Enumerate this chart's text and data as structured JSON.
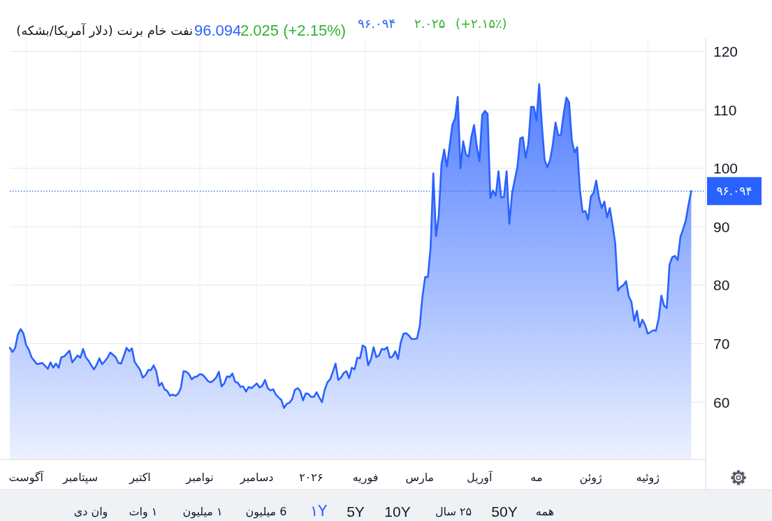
{
  "chart_data": {
    "type": "area",
    "title": "نفت خام برنت (دلار آمریکا/بشکه)",
    "categories": [
      null,
      null,
      null,
      null,
      null,
      null,
      "آگوست",
      null,
      null,
      null,
      null,
      null,
      null,
      null,
      null,
      null,
      null,
      null,
      null,
      null,
      null,
      null,
      null,
      null,
      null,
      null,
      "سپتامبر",
      null,
      null,
      null,
      null,
      null,
      null,
      null,
      null,
      null,
      null,
      null,
      null,
      null,
      null,
      null,
      null,
      null,
      null,
      null,
      null,
      null,
      "اکتبر",
      null,
      null,
      null,
      null,
      null,
      null,
      null,
      null,
      null,
      null,
      null,
      null,
      null,
      null,
      null,
      null,
      null,
      null,
      null,
      null,
      null,
      "نوامبر",
      null,
      null,
      null,
      null,
      null,
      null,
      null,
      null,
      null,
      null,
      null,
      null,
      null,
      null,
      null,
      null,
      null,
      null,
      null,
      null,
      "دسامبر",
      null,
      null,
      null,
      null,
      null,
      null,
      null,
      null,
      null,
      null,
      null,
      null,
      null,
      null,
      null,
      null,
      null,
      null,
      null,
      "۲۰۲۶",
      null,
      null,
      null,
      null,
      null,
      null,
      null,
      null,
      null,
      null,
      null,
      null,
      null,
      null,
      null,
      null,
      null,
      null,
      null,
      "فوریه",
      null,
      null,
      null,
      null,
      null,
      null,
      null,
      null,
      null,
      null,
      null,
      null,
      null,
      null,
      null,
      null,
      null,
      null,
      null,
      "مارس",
      null,
      null,
      null,
      null,
      null,
      null,
      null,
      null,
      null,
      null,
      null,
      null,
      null,
      null,
      null,
      null,
      null,
      null,
      null,
      null,
      null,
      "آوریل",
      null,
      null,
      null,
      null,
      null,
      null,
      null,
      null,
      null,
      null,
      null,
      null,
      null,
      null,
      null,
      null,
      null,
      null,
      null,
      null,
      "مه",
      null,
      null,
      null,
      null,
      null,
      null,
      null,
      null,
      null,
      null,
      null,
      null,
      null,
      null,
      null,
      null,
      null,
      null,
      null,
      "ژوئن",
      null,
      null,
      null,
      null,
      null,
      null,
      null,
      null,
      null,
      null,
      null,
      null,
      null,
      null,
      null,
      null,
      null,
      null,
      null,
      null,
      "ژوئیه",
      null,
      null,
      null,
      null,
      null,
      null,
      null,
      null,
      null,
      null,
      null,
      null,
      null,
      null,
      null,
      null
    ],
    "values": [
      69.3,
      68.6,
      69.3,
      71.6,
      72.5,
      71.8,
      69.8,
      69.0,
      67.7,
      67.1,
      66.5,
      66.6,
      66.7,
      66.2,
      65.7,
      66.8,
      65.9,
      66.6,
      65.9,
      67.7,
      67.8,
      68.3,
      68.8,
      66.8,
      67.4,
      68.0,
      67.6,
      69.1,
      67.7,
      67.1,
      66.3,
      65.6,
      66.4,
      67.5,
      66.5,
      67.0,
      67.6,
      68.5,
      68.1,
      67.7,
      66.7,
      66.6,
      67.9,
      69.3,
      68.7,
      69.2,
      66.9,
      66.2,
      65.5,
      64.2,
      64.6,
      65.5,
      65.5,
      66.3,
      65.2,
      62.8,
      63.3,
      62.2,
      61.9,
      61.1,
      61.3,
      61.1,
      61.4,
      62.4,
      65.3,
      65.2,
      64.8,
      63.9,
      64.3,
      64.4,
      64.8,
      64.7,
      64.2,
      63.6,
      63.4,
      63.7,
      64.2,
      65.2,
      62.7,
      63.2,
      64.4,
      64.3,
      64.9,
      63.5,
      63.3,
      62.6,
      62.7,
      61.8,
      62.6,
      62.4,
      62.8,
      63.2,
      62.5,
      62.8,
      63.8,
      62.4,
      62.0,
      62.2,
      61.3,
      60.8,
      60.4,
      59.0,
      59.7,
      59.9,
      60.5,
      62.1,
      62.4,
      61.9,
      60.3,
      61.5,
      61.4,
      60.9,
      60.9,
      61.7,
      60.8,
      60.0,
      62.1,
      63.4,
      63.9,
      65.2,
      66.6,
      63.8,
      64.2,
      65.0,
      65.3,
      64.1,
      65.9,
      65.6,
      67.6,
      67.5,
      69.7,
      69.4,
      66.3,
      67.3,
      69.4,
      67.7,
      68.0,
      69.1,
      69.0,
      69.4,
      67.6,
      67.8,
      68.7,
      67.4,
      70.2,
      71.7,
      71.8,
      71.4,
      70.8,
      70.8,
      70.9,
      73.0,
      78.1,
      81.4,
      81.4,
      86.5,
      99.1,
      88.4,
      91.9,
      100.6,
      103.2,
      100.3,
      103.8,
      107.4,
      108.5,
      112.2,
      100.0,
      104.6,
      102.4,
      102.0,
      105.3,
      107.4,
      103.8,
      101.2,
      109.1,
      109.8,
      109.3,
      94.9,
      96.2,
      95.3,
      99.5,
      95.0,
      95.1,
      99.5,
      90.5,
      95.7,
      98.0,
      100.3,
      105.1,
      105.3,
      101.8,
      104.2,
      110.5,
      110.5,
      108.2,
      114.4,
      107.3,
      101.4,
      100.2,
      101.4,
      104.0,
      107.8,
      105.7,
      105.7,
      109.3,
      112.1,
      111.3,
      104.9,
      102.7,
      103.6,
      96.3,
      92.5,
      92.7,
      91.2,
      95.1,
      95.8,
      97.9,
      95.0,
      93.2,
      94.3,
      91.6,
      93.2,
      90.4,
      87.2,
      79.1,
      79.7,
      80.0,
      80.7,
      78.1,
      77.1,
      73.9,
      75.6,
      72.8,
      74.1,
      73.2,
      71.7,
      72.0,
      72.3,
      72.2,
      74.3,
      78.2,
      76.5,
      76.1,
      83.5,
      84.8,
      85.0,
      84.3,
      88.2,
      89.6,
      91.1,
      93.8,
      96.094
    ],
    "color": "#2962ff",
    "ylim": [
      50.2,
      122.2
    ],
    "yticks": [
      60,
      70,
      80,
      90,
      100,
      110,
      120
    ],
    "grid": true,
    "ref_lines": [
      {
        "axis": "y",
        "value": 96.094,
        "label": "۹۶.۰۹۴",
        "color": "#2962ff",
        "line_style": "dotted"
      }
    ],
    "annotations": [
      "96.094",
      "2.025 (+2.15%)",
      "۹۶.۰۹۴",
      "۲.۰۲۵",
      "(+۲.۱۵٪)",
      "وان دی",
      "۱ وات",
      "۱ میلیون",
      "6 میلیون",
      "۱Y",
      "5Y",
      "10Y",
      "۲۵ سال",
      "50Y",
      "همه"
    ]
  }
}
